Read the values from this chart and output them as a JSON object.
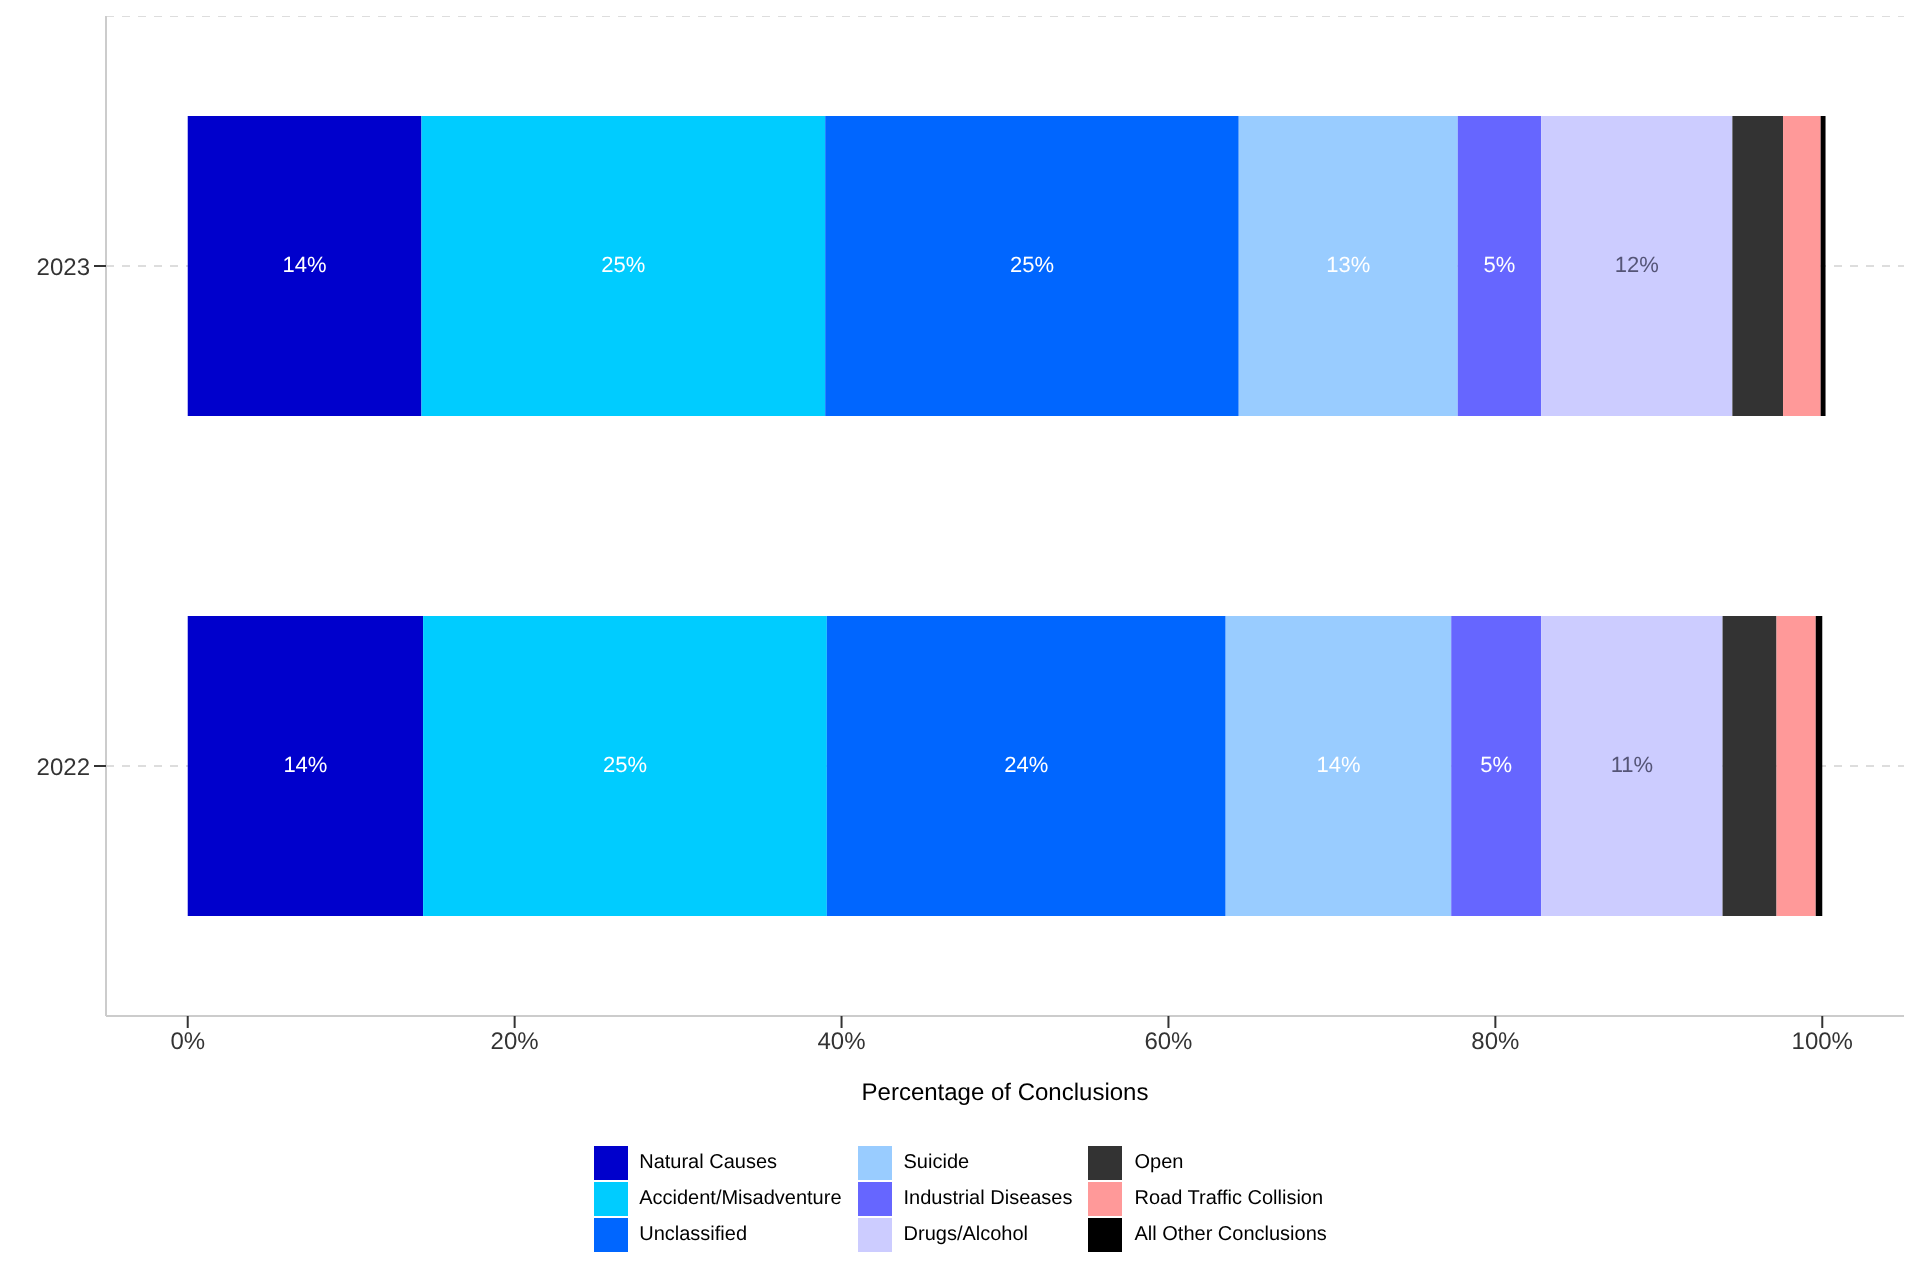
{
  "chart_data": {
    "type": "bar",
    "orientation": "horizontal",
    "stacked": true,
    "categories": [
      "2023",
      "2022"
    ],
    "xlabel": "Percentage of Conclusions",
    "xlim": [
      -5,
      105
    ],
    "xticks": [
      {
        "value": 0,
        "label": "0%"
      },
      {
        "value": 20,
        "label": "20%"
      },
      {
        "value": 40,
        "label": "40%"
      },
      {
        "value": 60,
        "label": "60%"
      },
      {
        "value": 80,
        "label": "80%"
      },
      {
        "value": 100,
        "label": "100%"
      }
    ],
    "grid": "y",
    "legend": "bottom",
    "series": [
      {
        "name": "Natural Causes",
        "color": "#0000cc",
        "values": [
          14.3,
          14.4
        ],
        "value_labels": [
          "14%",
          "14%"
        ]
      },
      {
        "name": "Accident/Misadventure",
        "color": "#00ccff",
        "values": [
          24.7,
          24.7
        ],
        "value_labels": [
          "25%",
          "25%"
        ]
      },
      {
        "name": "Unclassified",
        "color": "#0066ff",
        "values": [
          25.3,
          24.4
        ],
        "value_labels": [
          "25%",
          "24%"
        ]
      },
      {
        "name": "Suicide",
        "color": "#99ccff",
        "values": [
          13.4,
          13.8
        ],
        "value_labels": [
          "13%",
          "14%"
        ]
      },
      {
        "name": "Industrial Diseases",
        "color": "#6666ff",
        "values": [
          5.1,
          5.5
        ],
        "value_labels": [
          "5%",
          "5%"
        ]
      },
      {
        "name": "Drugs/Alcohol",
        "color": "#ccccff",
        "values": [
          11.7,
          11.1
        ],
        "value_labels": [
          "12%",
          "11%"
        ]
      },
      {
        "name": "Open",
        "color": "#333333",
        "values": [
          3.1,
          3.3
        ],
        "value_labels": [
          null,
          null
        ]
      },
      {
        "name": "Road Traffic Collision",
        "color": "#ff9999",
        "values": [
          2.3,
          2.4
        ],
        "value_labels": [
          null,
          null
        ]
      },
      {
        "name": "All Other Conclusions",
        "color": "#000000",
        "values": [
          0.3,
          0.4
        ],
        "value_labels": [
          null,
          null
        ]
      }
    ]
  }
}
